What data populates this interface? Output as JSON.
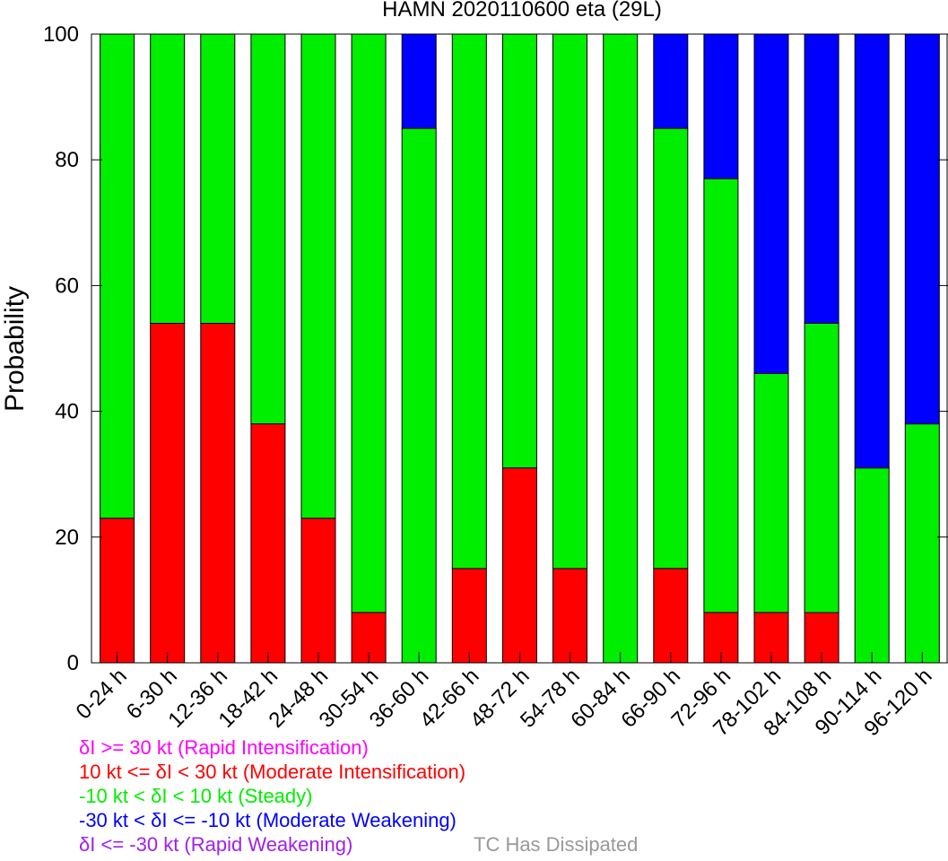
{
  "chart_data": {
    "type": "bar",
    "stacked": true,
    "title": "HAMN 2020110600 eta (29L)",
    "xlabel": "",
    "ylabel": "Probability",
    "ylim": [
      0,
      100
    ],
    "yticks": [
      0,
      20,
      40,
      60,
      80,
      100
    ],
    "categories": [
      "0-24 h",
      "6-30 h",
      "12-36 h",
      "18-42 h",
      "24-48 h",
      "30-54 h",
      "36-60 h",
      "42-66 h",
      "48-72 h",
      "54-78 h",
      "60-84 h",
      "66-90 h",
      "72-96 h",
      "78-102 h",
      "84-108 h",
      "90-114 h",
      "96-120 h"
    ],
    "series": [
      {
        "name": "10 kt <= δI < 30 kt (Moderate Intensification)",
        "color": "#ff0000",
        "values": [
          23,
          54,
          54,
          38,
          23,
          8,
          0,
          15,
          31,
          15,
          0,
          15,
          8,
          8,
          8,
          0,
          0
        ]
      },
      {
        "name": "-10 kt < δI < 10 kt (Steady)",
        "color": "#00ee00",
        "values": [
          77,
          46,
          46,
          62,
          77,
          92,
          85,
          85,
          69,
          85,
          100,
          70,
          69,
          38,
          46,
          31,
          38
        ]
      },
      {
        "name": "-30 kt < δI <= -10 kt (Moderate Weakening)",
        "color": "#0000ff",
        "values": [
          0,
          0,
          0,
          0,
          0,
          0,
          15,
          0,
          0,
          0,
          0,
          15,
          23,
          54,
          46,
          69,
          62
        ]
      }
    ],
    "grid": false,
    "legend": {
      "placement": "bottom-left",
      "entries": [
        {
          "text": "δI >= 30 kt (Rapid Intensification)",
          "color": "#ff00ff"
        },
        {
          "text": "10 kt <= δI < 30 kt (Moderate Intensification)",
          "color": "#ff0000"
        },
        {
          "text": "-10 kt < δI < 10 kt (Steady)",
          "color": "#00ee00"
        },
        {
          "text": "-30 kt < δI <= -10 kt (Moderate Weakening)",
          "color": "#0000ff"
        },
        {
          "text": "δI <= -30 kt (Rapid Weakening)",
          "color": "#a020f0"
        },
        {
          "text": "TC Has Dissipated",
          "color": "#999999"
        }
      ]
    }
  }
}
